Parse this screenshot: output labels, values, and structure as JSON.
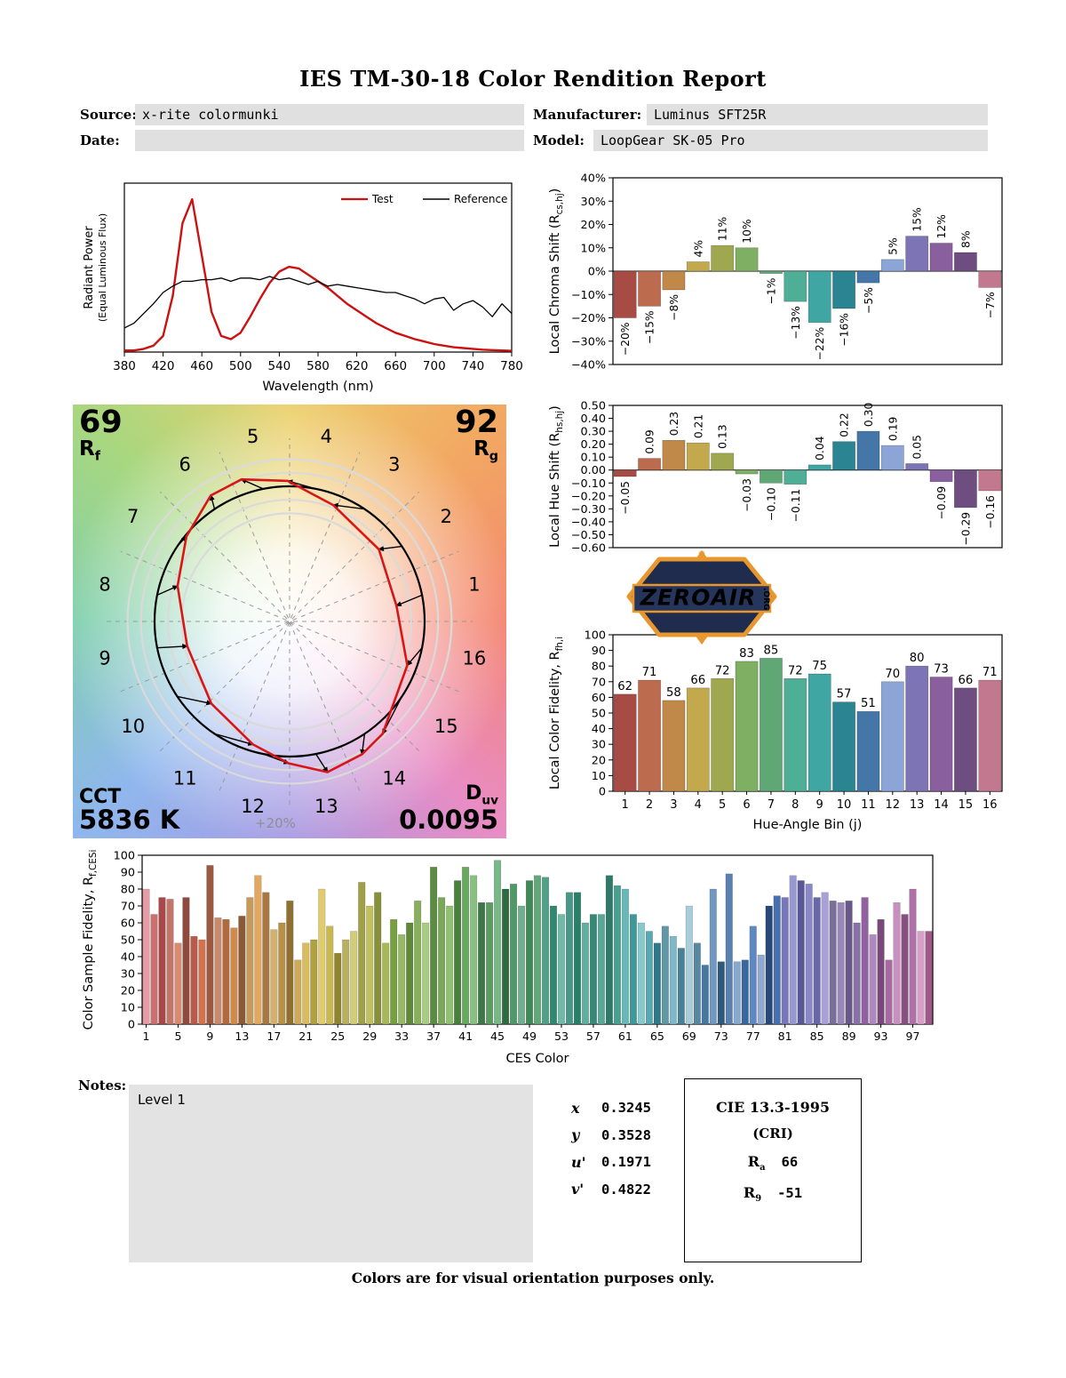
{
  "page": {
    "title": "IES TM-30-18 Color Rendition Report",
    "footer": "Colors are for visual orientation purposes only."
  },
  "header": {
    "source_label": "Source:",
    "source_value": "x-rite colormunki",
    "manufacturer_label": "Manufacturer:",
    "manufacturer_value": "Luminus SFT25R",
    "date_label": "Date:",
    "date_value": "",
    "model_label": "Model:",
    "model_value": "LoopGear SK-05 Pro"
  },
  "notes": {
    "label": "Notes:",
    "value": "Level 1"
  },
  "chromaticity": {
    "rows": [
      {
        "label": "x",
        "value": "0.3245"
      },
      {
        "label": "y",
        "value": "0.3528"
      },
      {
        "label": "u'",
        "value": "0.1971"
      },
      {
        "label": "v'",
        "value": "0.4822"
      }
    ]
  },
  "cri": {
    "title": "CIE 13.3-1995",
    "subtitle": "(CRI)",
    "ra_base": "R",
    "ra_sub": "a",
    "ra_value": "66",
    "r9_base": "R",
    "r9_sub": "9",
    "r9_value": "-51"
  },
  "cvg": {
    "rf_value": "69",
    "rf_base": "R",
    "rf_sub": "f",
    "rg_value": "92",
    "rg_base": "R",
    "rg_sub": "g",
    "cct_label": "CCT",
    "cct_value": "5836 K",
    "duv_base": "D",
    "duv_sub": "uv",
    "duv_value": "0.0095",
    "ring_label": "+20%",
    "bin_numbers": [
      "1",
      "2",
      "3",
      "4",
      "5",
      "6",
      "7",
      "8",
      "9",
      "10",
      "11",
      "12",
      "13",
      "14",
      "15",
      "16"
    ]
  },
  "logo": {
    "text": "ZEROAIR",
    "org": ".ORG"
  },
  "bin_colors": [
    "#a84b44",
    "#bc6b4e",
    "#c08949",
    "#c2a94d",
    "#9fa84e",
    "#7faf62",
    "#5fa876",
    "#4fae96",
    "#3fa6a4",
    "#2b8492",
    "#4477a8",
    "#8ca5d6",
    "#7d74b5",
    "#8a5f9e",
    "#6e4e80",
    "#c2798f"
  ],
  "chart_data": [
    {
      "id": "spd",
      "type": "line",
      "xlabel": "Wavelength (nm)",
      "ylabel_lines": [
        "Radiant Power",
        "(Equal Luminous Flux)"
      ],
      "xlim": [
        380,
        780
      ],
      "ylim": [
        0,
        1.05
      ],
      "xticks": [
        380,
        420,
        460,
        500,
        540,
        580,
        620,
        660,
        700,
        740,
        780
      ],
      "legend": [
        {
          "label": "Test",
          "color": "#cc1111"
        },
        {
          "label": "Reference",
          "color": "#000000"
        }
      ],
      "series": [
        {
          "name": "Test",
          "color": "#cc1111",
          "width": 2.4,
          "x_start": 380,
          "x_step": 10,
          "y": [
            0.01,
            0.01,
            0.02,
            0.04,
            0.1,
            0.35,
            0.8,
            0.95,
            0.6,
            0.25,
            0.1,
            0.08,
            0.12,
            0.22,
            0.33,
            0.43,
            0.5,
            0.53,
            0.52,
            0.48,
            0.44,
            0.4,
            0.35,
            0.3,
            0.26,
            0.22,
            0.18,
            0.15,
            0.12,
            0.1,
            0.08,
            0.065,
            0.05,
            0.04,
            0.03,
            0.025,
            0.02,
            0.015,
            0.012,
            0.01,
            0.008
          ]
        },
        {
          "name": "Reference",
          "color": "#000000",
          "width": 1.3,
          "x_start": 380,
          "x_step": 10,
          "y": [
            0.15,
            0.18,
            0.24,
            0.3,
            0.37,
            0.41,
            0.44,
            0.44,
            0.45,
            0.45,
            0.46,
            0.44,
            0.46,
            0.46,
            0.45,
            0.47,
            0.45,
            0.46,
            0.44,
            0.42,
            0.44,
            0.41,
            0.42,
            0.41,
            0.4,
            0.39,
            0.38,
            0.37,
            0.37,
            0.35,
            0.33,
            0.3,
            0.33,
            0.34,
            0.26,
            0.3,
            0.32,
            0.28,
            0.22,
            0.3,
            0.24
          ]
        }
      ]
    },
    {
      "id": "chroma",
      "type": "bar",
      "ylabel_parts": [
        "Local Chroma Shift (R",
        "cs,hj",
        ")"
      ],
      "ylim": [
        -40,
        40
      ],
      "ytick_values": [
        40,
        30,
        20,
        10,
        0,
        -10,
        -20,
        -30,
        -40
      ],
      "ytick_labels": [
        "40%",
        "30%",
        "20%",
        "10%",
        "0%",
        "−10%",
        "−20%",
        "−30%",
        "−40%"
      ],
      "categories": [
        1,
        2,
        3,
        4,
        5,
        6,
        7,
        8,
        9,
        10,
        11,
        12,
        13,
        14,
        15,
        16
      ],
      "values": [
        -20,
        -15,
        -8,
        4,
        11,
        10,
        -1,
        -13,
        -22,
        -16,
        -5,
        5,
        15,
        12,
        8,
        -7
      ],
      "labels": [
        "−20%",
        "−15%",
        "−8%",
        "4%",
        "11%",
        "10%",
        "−1%",
        "−13%",
        "−22%",
        "−16%",
        "−5%",
        "5%",
        "15%",
        "12%",
        "8%",
        "−7%"
      ]
    },
    {
      "id": "hue",
      "type": "bar",
      "ylabel_parts": [
        "Local Hue Shift (R",
        "hs,hj",
        ")"
      ],
      "ylim": [
        -0.6,
        0.5
      ],
      "ytick_values": [
        0.5,
        0.4,
        0.3,
        0.2,
        0.1,
        0.0,
        -0.1,
        -0.2,
        -0.3,
        -0.4,
        -0.5,
        -0.6
      ],
      "ytick_labels": [
        "0.50",
        "0.40",
        "0.30",
        "0.20",
        "0.10",
        "0.00",
        "−0.10",
        "−0.20",
        "−0.30",
        "−0.40",
        "−0.50",
        "−0.60"
      ],
      "categories": [
        1,
        2,
        3,
        4,
        5,
        6,
        7,
        8,
        9,
        10,
        11,
        12,
        13,
        14,
        15,
        16
      ],
      "values": [
        -0.05,
        0.09,
        0.23,
        0.21,
        0.13,
        -0.03,
        -0.1,
        -0.11,
        0.04,
        0.22,
        0.3,
        0.19,
        0.05,
        -0.09,
        -0.29,
        -0.16
      ],
      "labels": [
        "−0.05",
        "0.09",
        "0.23",
        "0.21",
        "0.13",
        "−0.03",
        "−0.10",
        "−0.11",
        "0.04",
        "0.22",
        "0.30",
        "0.19",
        "0.05",
        "−0.09",
        "−0.29",
        "−0.16"
      ]
    },
    {
      "id": "fidelity",
      "type": "bar",
      "xlabel": "Hue-Angle Bin (j)",
      "ylabel_parts": [
        "Local Color Fidelity, R",
        "fh,i",
        ""
      ],
      "ylim": [
        0,
        100
      ],
      "ytick_values": [
        0,
        10,
        20,
        30,
        40,
        50,
        60,
        70,
        80,
        90,
        100
      ],
      "ytick_labels": [
        "0",
        "10",
        "20",
        "30",
        "40",
        "50",
        "60",
        "70",
        "80",
        "90",
        "100"
      ],
      "categories": [
        "1",
        "2",
        "3",
        "4",
        "5",
        "6",
        "7",
        "8",
        "9",
        "10",
        "11",
        "12",
        "13",
        "14",
        "15",
        "16"
      ],
      "values": [
        62,
        71,
        58,
        66,
        72,
        83,
        85,
        72,
        75,
        57,
        51,
        70,
        80,
        73,
        66,
        71
      ],
      "labels": [
        "62",
        "71",
        "58",
        "66",
        "72",
        "83",
        "85",
        "72",
        "75",
        "57",
        "51",
        "70",
        "80",
        "73",
        "66",
        "71"
      ]
    },
    {
      "id": "ces",
      "type": "bar",
      "xlabel": "CES Color",
      "ylabel_parts": [
        "Color Sample Fidelity, R",
        "f,CESi",
        ""
      ],
      "ylim": [
        0,
        100
      ],
      "ytick_values": [
        0,
        10,
        20,
        30,
        40,
        50,
        60,
        70,
        80,
        90,
        100
      ],
      "ytick_labels": [
        "0",
        "10",
        "20",
        "30",
        "40",
        "50",
        "60",
        "70",
        "80",
        "90",
        "100"
      ],
      "xtick_labels": [
        "1",
        "5",
        "9",
        "13",
        "17",
        "21",
        "25",
        "29",
        "33",
        "37",
        "41",
        "45",
        "49",
        "53",
        "57",
        "61",
        "65",
        "69",
        "73",
        "77",
        "81",
        "85",
        "89",
        "93",
        "97"
      ],
      "values": [
        80,
        65,
        75,
        74,
        48,
        75,
        52,
        50,
        94,
        63,
        62,
        57,
        64,
        75,
        88,
        78,
        56,
        60,
        73,
        38,
        48,
        50,
        80,
        58,
        42,
        50,
        55,
        84,
        70,
        78,
        48,
        62,
        53,
        60,
        73,
        60,
        93,
        75,
        70,
        85,
        93,
        88,
        72,
        72,
        97,
        80,
        83,
        70,
        85,
        88,
        87,
        70,
        65,
        78,
        78,
        60,
        65,
        65,
        88,
        82,
        80,
        65,
        60,
        55,
        48,
        58,
        52,
        45,
        70,
        48,
        35,
        80,
        37,
        89,
        37,
        38,
        58,
        41,
        70,
        76,
        75,
        88,
        85,
        83,
        75,
        78,
        73,
        72,
        73,
        60,
        75,
        53,
        62,
        38,
        72,
        65,
        80,
        55,
        55
      ],
      "colors": [
        "#e59ca6",
        "#cc6f6f",
        "#a84848",
        "#c2766a",
        "#d98a70",
        "#8f4a3e",
        "#b85c49",
        "#d4714f",
        "#9c5840",
        "#c88a6a",
        "#b06a3c",
        "#d28a4a",
        "#8a5a36",
        "#c69a58",
        "#e0a860",
        "#a87840",
        "#d2b070",
        "#b89048",
        "#8f7030",
        "#ccaa58",
        "#d8bc60",
        "#b0a040",
        "#e0cc70",
        "#c8b850",
        "#908430",
        "#b8b060",
        "#d0cc78",
        "#a0a048",
        "#c0c060",
        "#88903c",
        "#a8b858",
        "#78a040",
        "#98b868",
        "#60883a",
        "#88b05c",
        "#a8cc80",
        "#5c8c44",
        "#78a858",
        "#90c070",
        "#48803c",
        "#68a860",
        "#88c080",
        "#3f7848",
        "#5c9c64",
        "#78b888",
        "#2f6b40",
        "#509868",
        "#70b090",
        "#408858",
        "#60a878",
        "#50a088",
        "#308870",
        "#70b8a8",
        "#489888",
        "#288068",
        "#60b0a0",
        "#388878",
        "#58a898",
        "#307868",
        "#48a090",
        "#68b8b8",
        "#409898",
        "#88c8cc",
        "#58a8b0",
        "#307888",
        "#6098a8",
        "#80b8c8",
        "#488098",
        "#a8ccd8",
        "#5888a0",
        "#4878a0",
        "#7098c0",
        "#305878",
        "#5880b0",
        "#88a8cc",
        "#3868a0",
        "#6088c0",
        "#90a8d0",
        "#284878",
        "#4870b0",
        "#7878b8",
        "#9898d0",
        "#585898",
        "#8888c8",
        "#6868a8",
        "#a8a0d8",
        "#787098",
        "#9888b8",
        "#685888",
        "#8870a8",
        "#9060a0",
        "#b088c0",
        "#784878",
        "#a868a0",
        "#c890c0",
        "#885080",
        "#b070a8",
        "#d8a0c8",
        "#a05888"
      ]
    }
  ]
}
